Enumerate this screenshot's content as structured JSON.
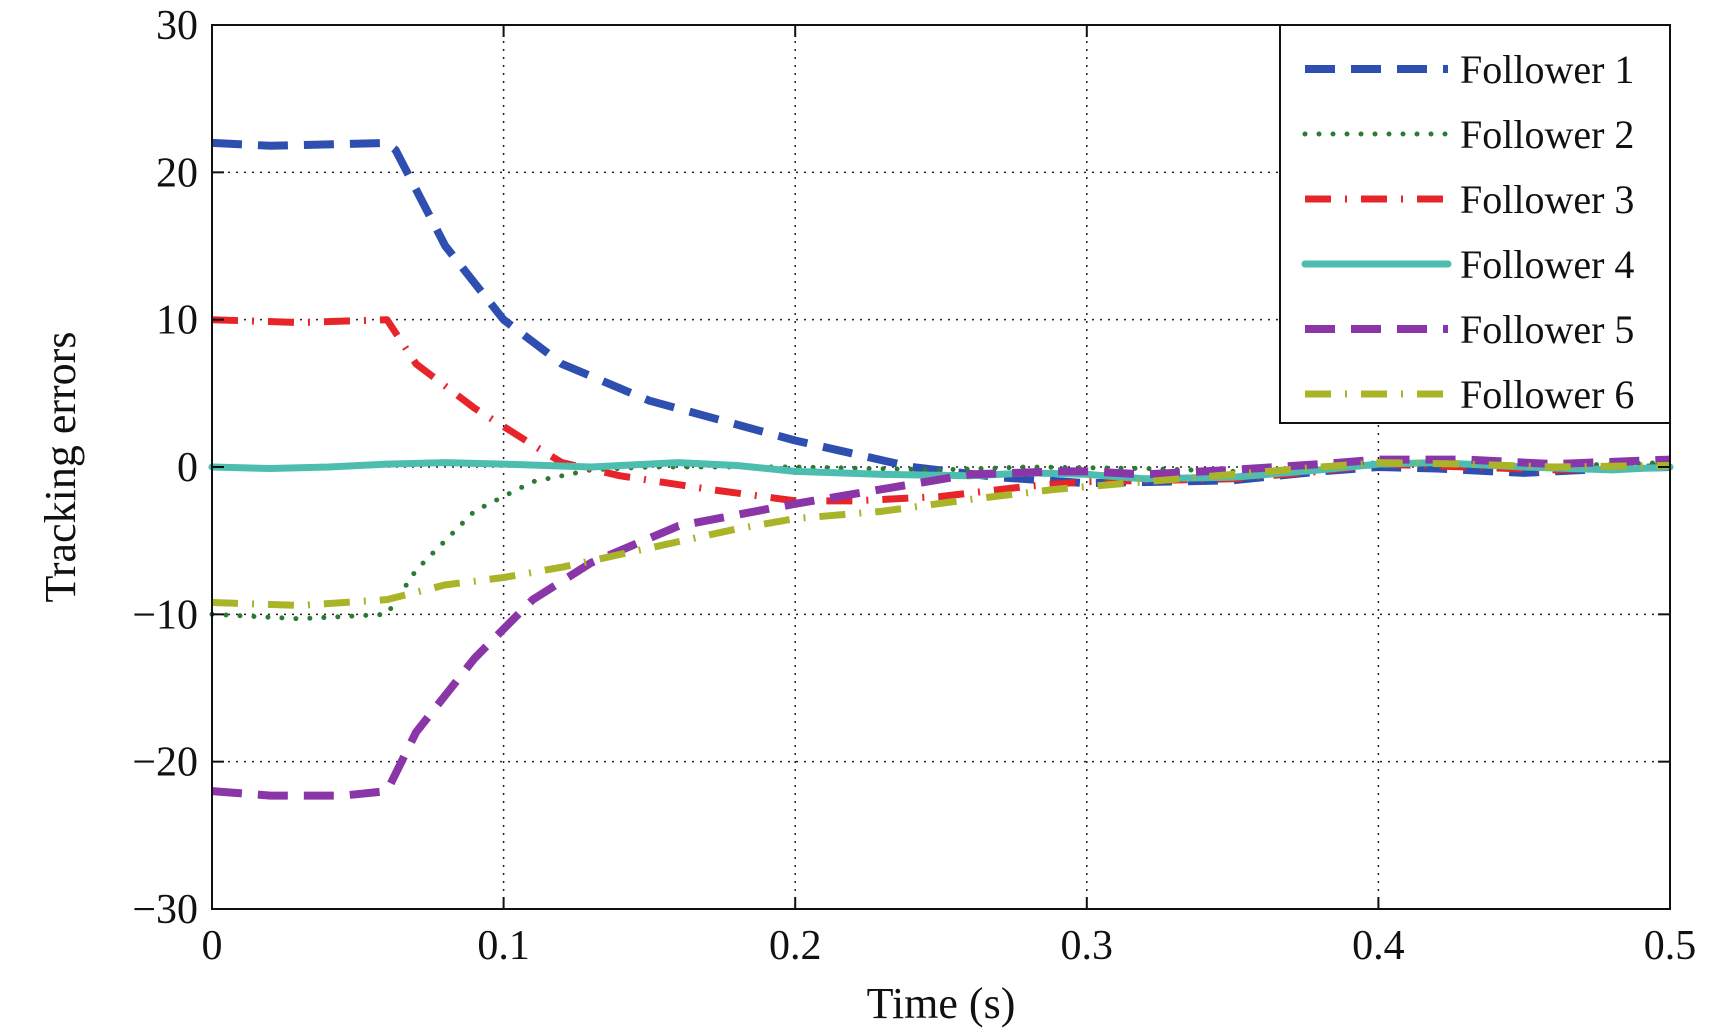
{
  "chart_data": {
    "type": "line",
    "title": "",
    "xlabel": "Time (s)",
    "ylabel": "Tracking errors",
    "xlim": [
      0,
      0.5
    ],
    "ylim": [
      -30,
      30
    ],
    "x_ticks": [
      0,
      0.1,
      0.2,
      0.3,
      0.4,
      0.5
    ],
    "y_ticks": [
      30,
      20,
      10,
      0,
      -10,
      -20,
      -30
    ],
    "x_tick_labels": [
      "0",
      "0.1",
      "0.2",
      "0.3",
      "0.4",
      "0.5"
    ],
    "y_tick_labels": [
      "30",
      "20",
      "10",
      "0",
      "−10",
      "−20",
      "−30"
    ],
    "grid": true,
    "grid_style": "dotted",
    "legend_position": "top-right",
    "series": [
      {
        "name": "Follower 1",
        "color": "#2e4fb0",
        "line_style": "dashed",
        "points": [
          [
            0,
            22
          ],
          [
            0.02,
            21.8
          ],
          [
            0.06,
            22
          ],
          [
            0.063,
            21.5
          ],
          [
            0.08,
            15
          ],
          [
            0.1,
            10
          ],
          [
            0.12,
            7
          ],
          [
            0.15,
            4.5
          ],
          [
            0.2,
            1.8
          ],
          [
            0.24,
            0
          ],
          [
            0.27,
            -0.7
          ],
          [
            0.3,
            -1.1
          ],
          [
            0.35,
            -0.9
          ],
          [
            0.38,
            -0.3
          ],
          [
            0.4,
            0
          ],
          [
            0.42,
            -0.1
          ],
          [
            0.45,
            -0.4
          ],
          [
            0.48,
            -0.1
          ],
          [
            0.5,
            0
          ]
        ]
      },
      {
        "name": "Follower 2",
        "color": "#2c7a34",
        "line_style": "dotted",
        "points": [
          [
            0,
            -10
          ],
          [
            0.03,
            -10.3
          ],
          [
            0.06,
            -10
          ],
          [
            0.07,
            -7
          ],
          [
            0.09,
            -3
          ],
          [
            0.11,
            -1
          ],
          [
            0.13,
            -0.2
          ],
          [
            0.15,
            0
          ],
          [
            0.2,
            0
          ],
          [
            0.25,
            -0.2
          ],
          [
            0.28,
            0
          ],
          [
            0.32,
            -0.1
          ],
          [
            0.35,
            -0.3
          ],
          [
            0.38,
            -0.1
          ],
          [
            0.4,
            0.3
          ],
          [
            0.43,
            0.2
          ],
          [
            0.45,
            0
          ],
          [
            0.48,
            0.2
          ],
          [
            0.5,
            0.3
          ]
        ]
      },
      {
        "name": "Follower 3",
        "color": "#e8242b",
        "line_style": "dashdot",
        "points": [
          [
            0,
            10
          ],
          [
            0.03,
            9.8
          ],
          [
            0.06,
            10
          ],
          [
            0.07,
            7
          ],
          [
            0.09,
            4
          ],
          [
            0.11,
            1.5
          ],
          [
            0.12,
            0.3
          ],
          [
            0.14,
            -0.6
          ],
          [
            0.17,
            -1.5
          ],
          [
            0.2,
            -2.3
          ],
          [
            0.22,
            -2.3
          ],
          [
            0.25,
            -2
          ],
          [
            0.28,
            -1.3
          ],
          [
            0.3,
            -1
          ],
          [
            0.35,
            -0.8
          ],
          [
            0.38,
            -0.3
          ],
          [
            0.4,
            0.2
          ],
          [
            0.43,
            0
          ],
          [
            0.46,
            -0.2
          ],
          [
            0.5,
            0
          ]
        ]
      },
      {
        "name": "Follower 4",
        "color": "#4dbdb0",
        "line_style": "solid",
        "points": [
          [
            0,
            0
          ],
          [
            0.02,
            -0.1
          ],
          [
            0.04,
            0
          ],
          [
            0.06,
            0.2
          ],
          [
            0.08,
            0.3
          ],
          [
            0.1,
            0.2
          ],
          [
            0.13,
            0
          ],
          [
            0.16,
            0.3
          ],
          [
            0.18,
            0.1
          ],
          [
            0.2,
            -0.3
          ],
          [
            0.23,
            -0.5
          ],
          [
            0.26,
            -0.6
          ],
          [
            0.28,
            -0.4
          ],
          [
            0.3,
            -0.5
          ],
          [
            0.32,
            -0.8
          ],
          [
            0.35,
            -0.7
          ],
          [
            0.38,
            -0.2
          ],
          [
            0.4,
            0.2
          ],
          [
            0.42,
            0.3
          ],
          [
            0.45,
            0
          ],
          [
            0.48,
            -0.2
          ],
          [
            0.5,
            0
          ]
        ]
      },
      {
        "name": "Follower 5",
        "color": "#8a35a8",
        "line_style": "dashed",
        "points": [
          [
            0,
            -22
          ],
          [
            0.02,
            -22.3
          ],
          [
            0.045,
            -22.3
          ],
          [
            0.06,
            -22
          ],
          [
            0.07,
            -18
          ],
          [
            0.09,
            -13
          ],
          [
            0.11,
            -9
          ],
          [
            0.13,
            -6.5
          ],
          [
            0.16,
            -4
          ],
          [
            0.2,
            -2.5
          ],
          [
            0.23,
            -1.5
          ],
          [
            0.26,
            -0.5
          ],
          [
            0.29,
            -0.3
          ],
          [
            0.3,
            -0.3
          ],
          [
            0.32,
            -0.5
          ],
          [
            0.35,
            -0.2
          ],
          [
            0.38,
            0.2
          ],
          [
            0.4,
            0.5
          ],
          [
            0.43,
            0.5
          ],
          [
            0.46,
            0.2
          ],
          [
            0.5,
            0.5
          ]
        ]
      },
      {
        "name": "Follower 6",
        "color": "#aab428",
        "line_style": "dashdot",
        "points": [
          [
            0,
            -9.2
          ],
          [
            0.03,
            -9.4
          ],
          [
            0.06,
            -9
          ],
          [
            0.08,
            -8
          ],
          [
            0.1,
            -7.5
          ],
          [
            0.12,
            -6.8
          ],
          [
            0.15,
            -5.5
          ],
          [
            0.18,
            -4.2
          ],
          [
            0.2,
            -3.5
          ],
          [
            0.23,
            -3
          ],
          [
            0.26,
            -2.2
          ],
          [
            0.29,
            -1.5
          ],
          [
            0.32,
            -1
          ],
          [
            0.35,
            -0.5
          ],
          [
            0.38,
            0
          ],
          [
            0.4,
            0.3
          ],
          [
            0.43,
            0.2
          ],
          [
            0.46,
            0
          ],
          [
            0.5,
            0.1
          ]
        ]
      }
    ]
  }
}
